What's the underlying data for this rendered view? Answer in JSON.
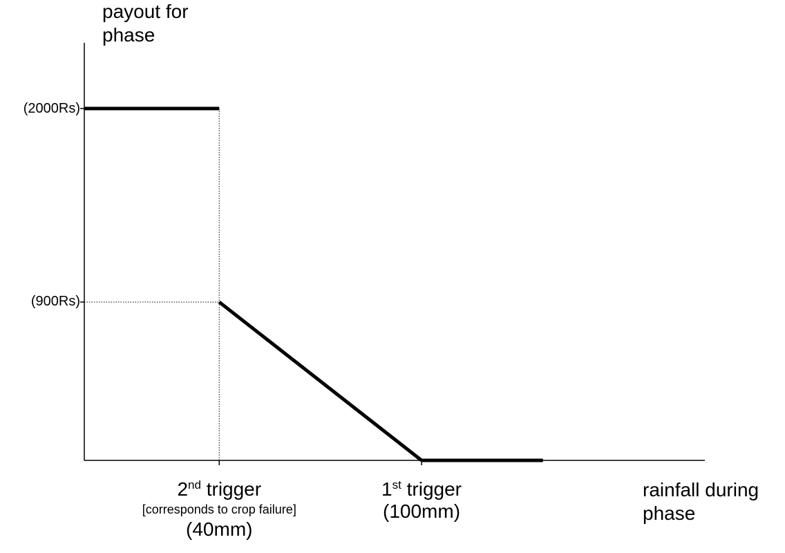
{
  "chart_data": {
    "type": "line",
    "ylabel": [
      "payout for",
      "phase"
    ],
    "xlabel": [
      "rainfall during",
      "phase"
    ],
    "y_ticks": [
      {
        "label": "(2000Rs)",
        "value": 2000
      },
      {
        "label": "(900Rs)",
        "value": 900
      }
    ],
    "x_ticks": [
      {
        "ord": "2",
        "sup": "nd",
        "rest": " trigger",
        "note": "[corresponds to crop failure]",
        "value_label": "(40mm)",
        "value": 40
      },
      {
        "ord": "1",
        "sup": "st",
        "rest": " trigger",
        "note": "",
        "value_label": "(100mm)",
        "value": 100
      }
    ],
    "series": [
      {
        "points": [
          [
            0,
            2000
          ],
          [
            40,
            2000
          ]
        ]
      },
      {
        "points": [
          [
            40,
            900
          ],
          [
            100,
            0
          ]
        ]
      },
      {
        "points": [
          [
            100,
            0
          ],
          [
            136,
            0
          ]
        ]
      }
    ],
    "guides": [
      {
        "type": "vertical",
        "x": 40,
        "from_y": 0,
        "to_y": 2000
      },
      {
        "type": "horizontal",
        "y": 900,
        "from_x": 0,
        "to_x": 40
      }
    ],
    "xlim": [
      0,
      184
    ],
    "ylim": [
      0,
      2000
    ]
  }
}
